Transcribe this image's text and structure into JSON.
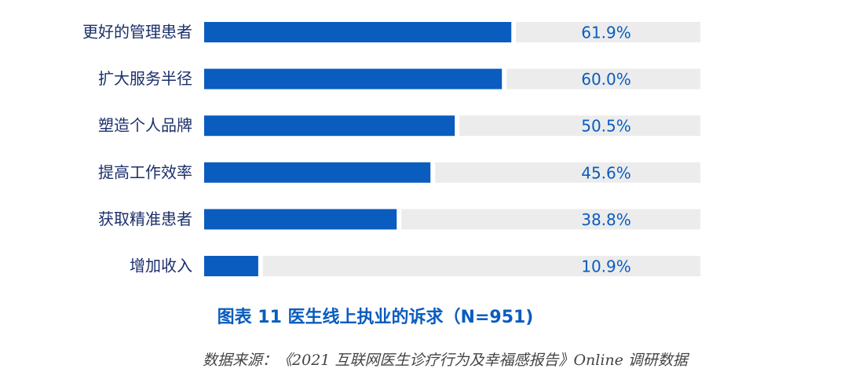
{
  "chart_data": {
    "type": "bar",
    "orientation": "horizontal",
    "title": "图表 11 医生线上执业的诉求（N=951)",
    "source": "数据来源：《2021 互联网医生诊疗行为及幸福感报告》Online 调研数据",
    "categories": [
      "更好的管理患者",
      "扩大服务半径",
      "塑造个人品牌",
      "提高工作效率",
      "获取精准患者",
      "增加收入"
    ],
    "values": [
      61.9,
      60.0,
      50.5,
      45.6,
      38.8,
      10.9
    ],
    "value_labels": [
      "61.9%",
      "60.0%",
      "50.5%",
      "45.6%",
      "38.8%",
      "10.9%"
    ],
    "color": "#0a5cbf"
  }
}
